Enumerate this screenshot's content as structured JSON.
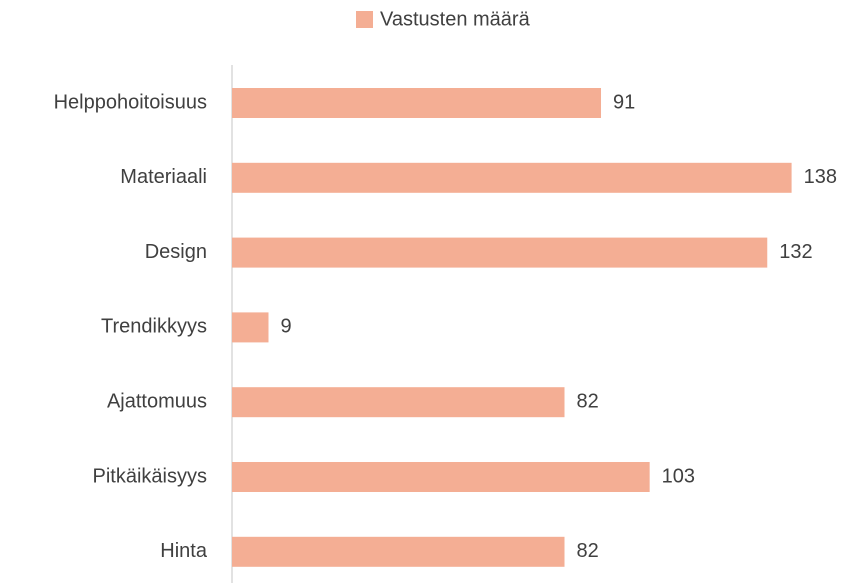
{
  "chart_data": {
    "type": "bar",
    "orientation": "horizontal",
    "categories": [
      "Helppohoitoisuus",
      "Materiaali",
      "Design",
      "Trendikkyys",
      "Ajattomuus",
      "Pitkäikäisyys",
      "Hinta"
    ],
    "series": [
      {
        "name": "Vastusten määrä",
        "color": "#f4ae94",
        "values": [
          91,
          138,
          132,
          9,
          82,
          103,
          82
        ]
      }
    ],
    "legend": "top"
  }
}
